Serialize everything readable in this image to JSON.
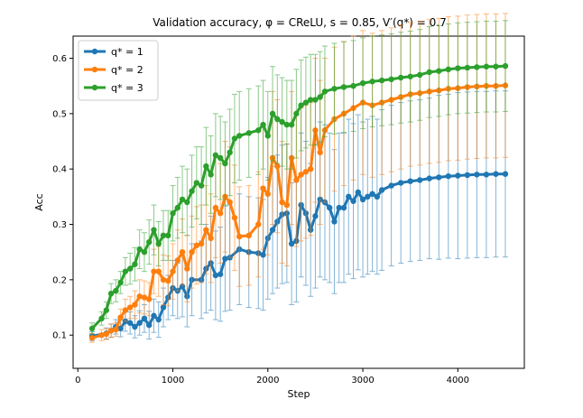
{
  "chart_data": {
    "type": "line",
    "title": "Validation accuracy, φ = CReLU, s = 0.85, V′(q*) = 0.7",
    "xlabel": "Step",
    "ylabel": "Acc",
    "xlim": [
      -50,
      4700
    ],
    "ylim": [
      0.04,
      0.64
    ],
    "xticks": [
      0,
      1000,
      2000,
      3000,
      4000
    ],
    "yticks": [
      0.1,
      0.2,
      0.3,
      0.4,
      0.5,
      0.6
    ],
    "xtick_labels": [
      "0",
      "1000",
      "2000",
      "3000",
      "4000"
    ],
    "ytick_labels": [
      "0.1",
      "0.2",
      "0.3",
      "0.4",
      "0.5",
      "0.6"
    ],
    "legend_position": "top-left",
    "grid": false,
    "series": [
      {
        "name": "q* = 1",
        "legend_label": "q* = 1",
        "color": "#1f77b4",
        "x": [
          150,
          300,
          350,
          400,
          450,
          500,
          550,
          600,
          650,
          700,
          750,
          800,
          850,
          900,
          950,
          1000,
          1050,
          1100,
          1150,
          1200,
          1300,
          1350,
          1400,
          1450,
          1500,
          1550,
          1600,
          1700,
          1800,
          1900,
          1950,
          2000,
          2050,
          2100,
          2150,
          2200,
          2250,
          2300,
          2350,
          2400,
          2450,
          2500,
          2550,
          2600,
          2650,
          2700,
          2750,
          2800,
          2850,
          2900,
          2950,
          3000,
          3050,
          3100,
          3150,
          3200,
          3300,
          3400,
          3500,
          3600,
          3700,
          3800,
          3900,
          4000,
          4100,
          4200,
          4300,
          4400,
          4500
        ],
        "values": [
          0.098,
          0.103,
          0.108,
          0.115,
          0.112,
          0.125,
          0.122,
          0.115,
          0.122,
          0.13,
          0.118,
          0.135,
          0.128,
          0.15,
          0.168,
          0.185,
          0.18,
          0.188,
          0.17,
          0.2,
          0.2,
          0.22,
          0.23,
          0.208,
          0.21,
          0.238,
          0.24,
          0.255,
          0.25,
          0.248,
          0.245,
          0.275,
          0.29,
          0.305,
          0.318,
          0.32,
          0.265,
          0.27,
          0.335,
          0.32,
          0.29,
          0.315,
          0.345,
          0.34,
          0.33,
          0.305,
          0.33,
          0.33,
          0.35,
          0.342,
          0.358,
          0.345,
          0.35,
          0.355,
          0.35,
          0.362,
          0.37,
          0.375,
          0.378,
          0.38,
          0.383,
          0.385,
          0.387,
          0.388,
          0.389,
          0.39,
          0.39,
          0.391,
          0.391
        ],
        "err": [
          0.008,
          0.01,
          0.012,
          0.013,
          0.015,
          0.018,
          0.02,
          0.02,
          0.022,
          0.025,
          0.025,
          0.03,
          0.032,
          0.035,
          0.04,
          0.05,
          0.05,
          0.055,
          0.055,
          0.065,
          0.07,
          0.08,
          0.085,
          0.08,
          0.085,
          0.095,
          0.095,
          0.1,
          0.1,
          0.1,
          0.1,
          0.11,
          0.115,
          0.12,
          0.125,
          0.125,
          0.11,
          0.11,
          0.13,
          0.13,
          0.12,
          0.13,
          0.14,
          0.14,
          0.135,
          0.13,
          0.135,
          0.135,
          0.14,
          0.14,
          0.14,
          0.14,
          0.14,
          0.14,
          0.14,
          0.145,
          0.145,
          0.145,
          0.145,
          0.145,
          0.145,
          0.148,
          0.148,
          0.15,
          0.15,
          0.15,
          0.15,
          0.15,
          0.15
        ]
      },
      {
        "name": "q* = 2",
        "legend_label": "q* = 2",
        "color": "#ff7f0e",
        "x": [
          150,
          250,
          300,
          350,
          400,
          450,
          500,
          550,
          600,
          650,
          700,
          750,
          800,
          850,
          900,
          950,
          1000,
          1050,
          1100,
          1150,
          1200,
          1250,
          1300,
          1350,
          1400,
          1450,
          1500,
          1550,
          1600,
          1650,
          1700,
          1800,
          1900,
          1950,
          2000,
          2050,
          2100,
          2150,
          2200,
          2250,
          2300,
          2350,
          2400,
          2450,
          2500,
          2550,
          2600,
          2700,
          2800,
          2900,
          3000,
          3100,
          3200,
          3300,
          3400,
          3500,
          3600,
          3700,
          3800,
          3900,
          4000,
          4100,
          4200,
          4300,
          4400,
          4500
        ],
        "values": [
          0.095,
          0.1,
          0.102,
          0.108,
          0.11,
          0.132,
          0.145,
          0.15,
          0.155,
          0.17,
          0.168,
          0.165,
          0.215,
          0.215,
          0.2,
          0.198,
          0.215,
          0.235,
          0.25,
          0.22,
          0.25,
          0.262,
          0.265,
          0.29,
          0.275,
          0.33,
          0.32,
          0.35,
          0.34,
          0.312,
          0.278,
          0.28,
          0.3,
          0.365,
          0.355,
          0.42,
          0.405,
          0.34,
          0.335,
          0.42,
          0.38,
          0.39,
          0.395,
          0.4,
          0.47,
          0.43,
          0.47,
          0.49,
          0.5,
          0.51,
          0.52,
          0.515,
          0.52,
          0.525,
          0.53,
          0.535,
          0.537,
          0.54,
          0.542,
          0.545,
          0.546,
          0.548,
          0.549,
          0.55,
          0.55,
          0.551
        ],
        "err": [
          0.008,
          0.01,
          0.01,
          0.012,
          0.012,
          0.015,
          0.02,
          0.02,
          0.025,
          0.03,
          0.03,
          0.03,
          0.04,
          0.045,
          0.045,
          0.045,
          0.05,
          0.055,
          0.06,
          0.06,
          0.065,
          0.07,
          0.07,
          0.08,
          0.08,
          0.09,
          0.09,
          0.1,
          0.1,
          0.095,
          0.09,
          0.09,
          0.095,
          0.11,
          0.11,
          0.12,
          0.12,
          0.11,
          0.11,
          0.12,
          0.12,
          0.12,
          0.12,
          0.12,
          0.13,
          0.13,
          0.13,
          0.13,
          0.13,
          0.13,
          0.13,
          0.13,
          0.13,
          0.13,
          0.13,
          0.13,
          0.13,
          0.13,
          0.13,
          0.13,
          0.13,
          0.13,
          0.13,
          0.13,
          0.13,
          0.13
        ]
      },
      {
        "name": "q* = 3",
        "legend_label": "q* = 3",
        "color": "#2ca02c",
        "x": [
          150,
          250,
          300,
          350,
          400,
          450,
          500,
          550,
          600,
          650,
          700,
          750,
          800,
          850,
          900,
          950,
          1000,
          1050,
          1100,
          1150,
          1200,
          1250,
          1300,
          1350,
          1400,
          1450,
          1500,
          1550,
          1600,
          1650,
          1700,
          1800,
          1900,
          1950,
          2000,
          2050,
          2100,
          2150,
          2200,
          2250,
          2300,
          2350,
          2400,
          2450,
          2500,
          2550,
          2600,
          2700,
          2800,
          2900,
          3000,
          3100,
          3200,
          3300,
          3400,
          3500,
          3600,
          3700,
          3800,
          3900,
          4000,
          4100,
          4200,
          4300,
          4400,
          4500
        ],
        "values": [
          0.112,
          0.13,
          0.145,
          0.175,
          0.18,
          0.195,
          0.215,
          0.22,
          0.228,
          0.255,
          0.25,
          0.268,
          0.29,
          0.265,
          0.28,
          0.28,
          0.32,
          0.33,
          0.345,
          0.34,
          0.36,
          0.375,
          0.37,
          0.405,
          0.39,
          0.425,
          0.42,
          0.41,
          0.43,
          0.455,
          0.46,
          0.465,
          0.47,
          0.48,
          0.46,
          0.5,
          0.49,
          0.485,
          0.48,
          0.48,
          0.5,
          0.515,
          0.52,
          0.525,
          0.525,
          0.53,
          0.54,
          0.545,
          0.548,
          0.55,
          0.555,
          0.558,
          0.56,
          0.562,
          0.565,
          0.567,
          0.57,
          0.575,
          0.577,
          0.58,
          0.582,
          0.583,
          0.584,
          0.585,
          0.585,
          0.586
        ],
        "err": [
          0.01,
          0.012,
          0.015,
          0.018,
          0.02,
          0.02,
          0.025,
          0.028,
          0.03,
          0.035,
          0.035,
          0.04,
          0.045,
          0.04,
          0.045,
          0.045,
          0.05,
          0.055,
          0.06,
          0.06,
          0.065,
          0.065,
          0.07,
          0.07,
          0.07,
          0.075,
          0.075,
          0.075,
          0.078,
          0.08,
          0.08,
          0.08,
          0.08,
          0.08,
          0.08,
          0.085,
          0.08,
          0.08,
          0.08,
          0.08,
          0.08,
          0.082,
          0.082,
          0.082,
          0.082,
          0.082,
          0.082,
          0.082,
          0.082,
          0.082,
          0.082,
          0.082,
          0.082,
          0.082,
          0.082,
          0.082,
          0.082,
          0.082,
          0.082,
          0.082,
          0.082,
          0.082,
          0.082,
          0.082,
          0.082,
          0.082
        ]
      }
    ]
  }
}
